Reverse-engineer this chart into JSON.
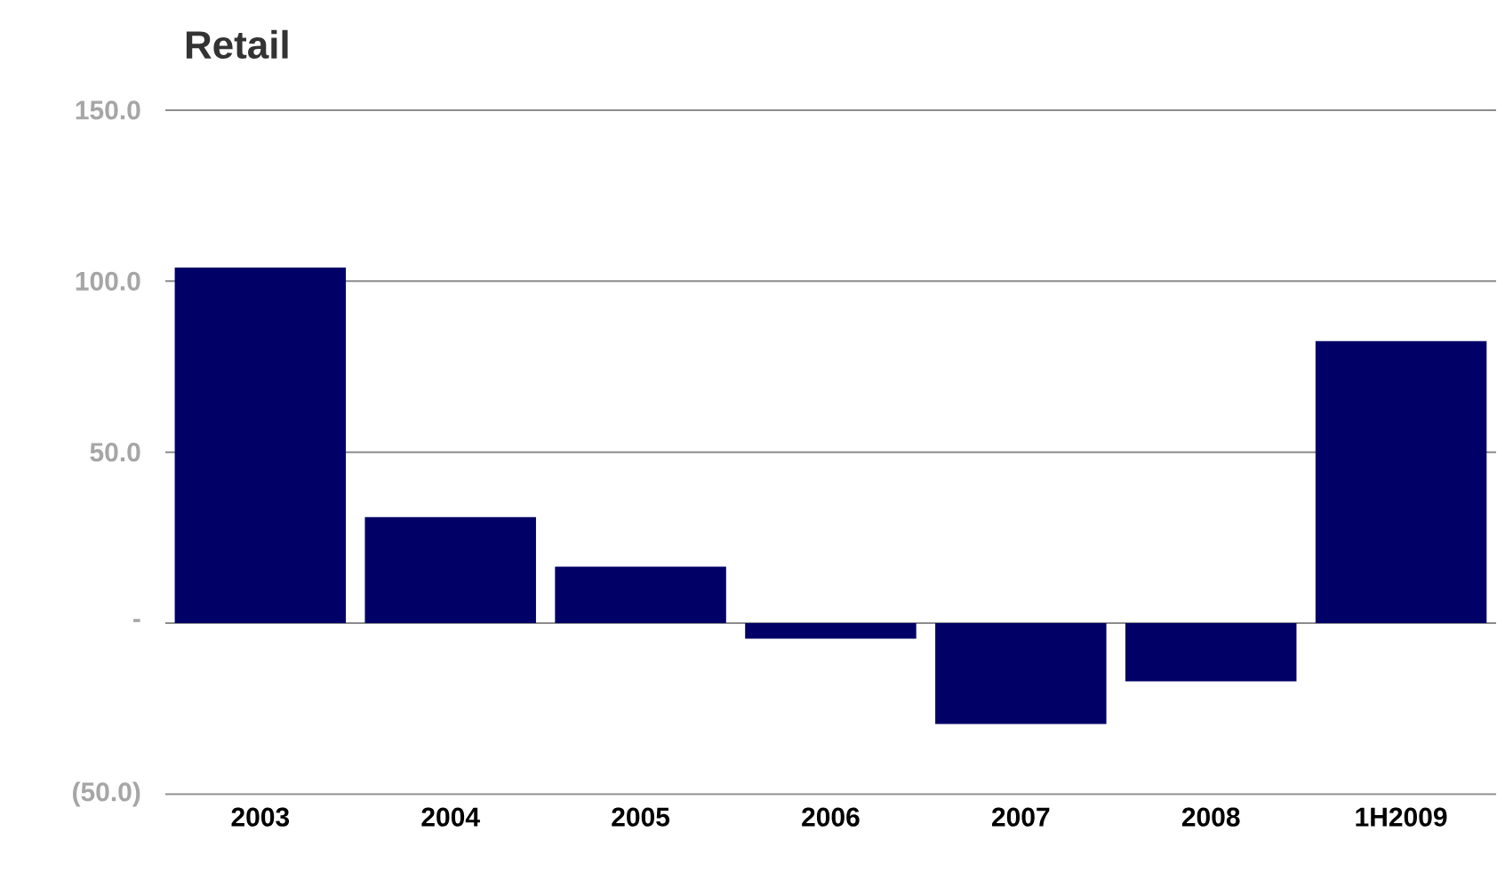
{
  "chart_data": {
    "type": "bar",
    "title": "Retail",
    "categories": [
      "2003",
      "2004",
      "2005",
      "2006",
      "2007",
      "2008",
      "1H2009"
    ],
    "values": [
      104,
      31,
      16.5,
      -4.5,
      -29.5,
      -17,
      82.5
    ],
    "color": "#000066",
    "ylim": [
      -50,
      150
    ],
    "yticks": [
      {
        "value": -50,
        "label": "(50.0)"
      },
      {
        "value": 0,
        "label": "-"
      },
      {
        "value": 50,
        "label": "50.0"
      },
      {
        "value": 100,
        "label": "100.0"
      },
      {
        "value": 150,
        "label": "150.0"
      }
    ],
    "grid": "y"
  }
}
